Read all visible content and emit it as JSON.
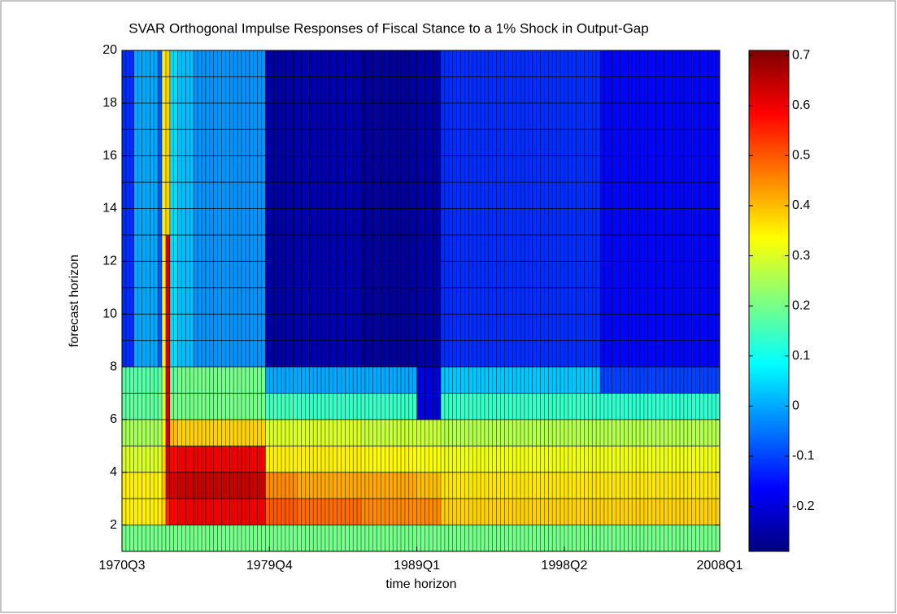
{
  "chart_data": {
    "type": "heatmap",
    "title": "SVAR Orthogonal Impulse Responses of Fiscal Stance to a 1% Shock in Output-Gap",
    "xlabel": "time horizon",
    "ylabel": "forecast horizon",
    "x": [
      0,
      3,
      9,
      10,
      11,
      12,
      14,
      18,
      36,
      44,
      60,
      74,
      80,
      120,
      150
    ],
    "y": [
      1,
      2,
      3,
      4,
      5,
      6,
      7,
      8,
      9,
      10,
      11,
      12,
      13,
      14,
      15,
      16,
      17,
      18,
      19,
      20
    ],
    "xlim": [
      0,
      150
    ],
    "ylim": [
      1,
      20
    ],
    "xticks": [
      {
        "value": 0,
        "label": "1970Q3"
      },
      {
        "value": 37,
        "label": "1979Q4"
      },
      {
        "value": 74,
        "label": "1989Q1"
      },
      {
        "value": 111,
        "label": "1998Q2"
      },
      {
        "value": 150,
        "label": "2008Q1"
      }
    ],
    "yticks": [
      2,
      4,
      6,
      8,
      10,
      12,
      14,
      16,
      18,
      20
    ],
    "clim": [
      -0.29,
      0.71
    ],
    "cticks": [
      -0.2,
      -0.1,
      0,
      0.1,
      0.2,
      0.3,
      0.4,
      0.5,
      0.6,
      0.7
    ],
    "colormap": "jet",
    "values": [
      [
        0.2,
        0.2,
        0.2,
        0.2,
        0.2,
        0.2,
        0.2,
        0.2,
        0.2,
        0.2,
        0.2,
        0.2,
        0.2,
        0.2
      ],
      [
        0.35,
        0.35,
        0.35,
        0.38,
        0.55,
        0.58,
        0.6,
        0.6,
        0.5,
        0.48,
        0.45,
        0.45,
        0.38,
        0.38
      ],
      [
        0.35,
        0.35,
        0.33,
        0.4,
        0.62,
        0.62,
        0.64,
        0.64,
        0.45,
        0.42,
        0.42,
        0.4,
        0.36,
        0.36
      ],
      [
        0.3,
        0.3,
        0.3,
        0.38,
        0.62,
        0.58,
        0.6,
        0.6,
        0.35,
        0.35,
        0.34,
        0.33,
        0.32,
        0.32
      ],
      [
        0.25,
        0.25,
        0.25,
        0.35,
        0.62,
        0.4,
        0.38,
        0.38,
        0.3,
        0.3,
        0.28,
        0.28,
        0.26,
        0.26
      ],
      [
        0.18,
        0.18,
        0.18,
        0.3,
        0.62,
        0.2,
        0.2,
        0.2,
        0.15,
        0.14,
        0.14,
        -0.2,
        0.14,
        0.13
      ],
      [
        0.17,
        0.17,
        0.17,
        0.3,
        0.62,
        0.18,
        0.2,
        0.2,
        0.0,
        0.0,
        0.0,
        -0.2,
        0.03,
        -0.1
      ],
      [
        -0.12,
        0.0,
        -0.08,
        0.35,
        0.62,
        0.05,
        0.02,
        -0.02,
        -0.25,
        -0.24,
        -0.26,
        -0.25,
        -0.12,
        -0.16
      ],
      [
        -0.12,
        0.0,
        -0.08,
        0.35,
        0.62,
        0.05,
        0.02,
        -0.02,
        -0.25,
        -0.24,
        -0.26,
        -0.25,
        -0.12,
        -0.16
      ],
      [
        -0.12,
        0.0,
        -0.08,
        0.35,
        0.62,
        0.05,
        0.02,
        -0.02,
        -0.25,
        -0.24,
        -0.26,
        -0.25,
        -0.12,
        -0.16
      ],
      [
        -0.12,
        0.0,
        -0.08,
        0.35,
        0.62,
        0.05,
        0.02,
        -0.02,
        -0.25,
        -0.24,
        -0.26,
        -0.25,
        -0.12,
        -0.16
      ],
      [
        -0.12,
        0.0,
        -0.08,
        0.35,
        0.62,
        0.05,
        0.02,
        -0.02,
        -0.25,
        -0.24,
        -0.26,
        -0.25,
        -0.12,
        -0.16
      ],
      [
        -0.12,
        0.0,
        -0.08,
        0.35,
        0.38,
        0.05,
        0.02,
        -0.02,
        -0.25,
        -0.24,
        -0.26,
        -0.25,
        -0.12,
        -0.16
      ],
      [
        -0.12,
        0.0,
        -0.08,
        0.35,
        0.38,
        0.05,
        0.02,
        -0.02,
        -0.25,
        -0.24,
        -0.26,
        -0.25,
        -0.12,
        -0.16
      ],
      [
        -0.12,
        0.0,
        -0.08,
        0.35,
        0.38,
        0.05,
        0.02,
        -0.02,
        -0.25,
        -0.24,
        -0.26,
        -0.25,
        -0.12,
        -0.16
      ],
      [
        -0.12,
        0.0,
        -0.08,
        0.35,
        0.38,
        0.05,
        0.02,
        -0.02,
        -0.25,
        -0.24,
        -0.26,
        -0.25,
        -0.12,
        -0.16
      ],
      [
        -0.12,
        0.0,
        -0.08,
        0.35,
        0.38,
        0.05,
        0.02,
        -0.02,
        -0.25,
        -0.24,
        -0.26,
        -0.25,
        -0.12,
        -0.16
      ],
      [
        -0.12,
        0.0,
        -0.08,
        0.35,
        0.38,
        0.05,
        0.02,
        -0.02,
        -0.25,
        -0.24,
        -0.26,
        -0.25,
        -0.12,
        -0.16
      ],
      [
        -0.12,
        0.0,
        -0.08,
        0.35,
        0.38,
        0.05,
        0.02,
        -0.02,
        -0.25,
        -0.24,
        -0.26,
        -0.25,
        -0.12,
        -0.16
      ]
    ]
  }
}
